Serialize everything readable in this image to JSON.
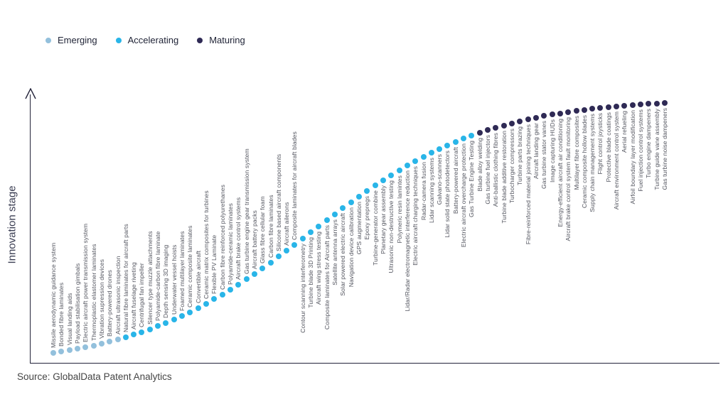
{
  "legend": [
    {
      "label": "Emerging",
      "color": "#93c0dc"
    },
    {
      "label": "Accelerating",
      "color": "#29b5e8"
    },
    {
      "label": "Maturing",
      "color": "#2f2a55"
    }
  ],
  "y_axis_label": "Innovation stage",
  "source": "Source: GlobalData Patent Analytics",
  "chart_data": {
    "type": "scatter",
    "title": "",
    "xlabel": "",
    "ylabel": "Innovation stage",
    "grid": false,
    "legend_position": "top-left",
    "curve_shape": "s-curve (logistic), ordered left-to-right by innovation maturity",
    "stage_colors": {
      "Emerging": "#93c0dc",
      "Accelerating": "#29b5e8",
      "Maturing": "#2f2a55"
    },
    "items": [
      {
        "label": "Missile aerodynamic guidance system",
        "stage": "Emerging"
      },
      {
        "label": "Bonded fibre laminates",
        "stage": "Emerging"
      },
      {
        "label": "Visual landing aids",
        "stage": "Emerging"
      },
      {
        "label": "Payload stabilisation gimbals",
        "stage": "Emerging"
      },
      {
        "label": "Electric aircraft power transmission system",
        "stage": "Emerging"
      },
      {
        "label": "Thermoplastic elastomer laminates",
        "stage": "Emerging"
      },
      {
        "label": "Vibration supression devices",
        "stage": "Emerging"
      },
      {
        "label": "Battery-powered drones",
        "stage": "Emerging"
      },
      {
        "label": "Aircraft ultrasonic inspection",
        "stage": "Emerging"
      },
      {
        "label": "Natural fibre laminates for aircraft parts",
        "stage": "Accelerating"
      },
      {
        "label": "Aircraft fuselage riveting",
        "stage": "Accelerating"
      },
      {
        "label": "Centrifugal fan impeller",
        "stage": "Accelerating"
      },
      {
        "label": "Silencer type muzzle attachments",
        "stage": "Accelerating"
      },
      {
        "label": "Polyamide-carbon fibre laminate",
        "stage": "Accelerating"
      },
      {
        "label": "Depth sensing 3D imaging",
        "stage": "Accelerating"
      },
      {
        "label": "Underwater vessel hoists",
        "stage": "Accelerating"
      },
      {
        "label": "Foamed multilayer laminates",
        "stage": "Accelerating"
      },
      {
        "label": "Ceramic composite laminates",
        "stage": "Accelerating"
      },
      {
        "label": "Convertible aircraft",
        "stage": "Accelerating"
      },
      {
        "label": "Ceramic matrix composites for turbines",
        "stage": "Accelerating"
      },
      {
        "label": "Flexible PV Laminate",
        "stage": "Accelerating"
      },
      {
        "label": "Carbon fibre reinforced polyurethanes",
        "stage": "Accelerating"
      },
      {
        "label": "Polyamide-ceramic laminates",
        "stage": "Accelerating"
      },
      {
        "label": "Aircraft brake control systems",
        "stage": "Accelerating"
      },
      {
        "label": "Gas turbine engine gear transmission system",
        "stage": "Accelerating"
      },
      {
        "label": "Aircraft battery packs",
        "stage": "Accelerating"
      },
      {
        "label": "Glass fibre cellular foam",
        "stage": "Accelerating"
      },
      {
        "label": "Carbon fibre laminates",
        "stage": "Accelerating"
      },
      {
        "label": "Silicone based aircraft components",
        "stage": "Accelerating"
      },
      {
        "label": "Aircraft ailerons",
        "stage": "Accelerating"
      },
      {
        "label": "Composite laminates for aircraft blades",
        "stage": "Accelerating"
      },
      {
        "label": "Contour scanning interferometry",
        "stage": "Accelerating"
      },
      {
        "label": "Turbine blade 3D Printing",
        "stage": "Accelerating"
      },
      {
        "label": "Aircraft wing stress testing",
        "stage": "Accelerating"
      },
      {
        "label": "Composite laminates for Aircraft parts",
        "stage": "Accelerating"
      },
      {
        "label": "Satellite antenna arrays",
        "stage": "Accelerating"
      },
      {
        "label": "Solar powered electric aircraft",
        "stage": "Accelerating"
      },
      {
        "label": "Navigation device calibration",
        "stage": "Accelerating"
      },
      {
        "label": "GPS augmentation",
        "stage": "Accelerating"
      },
      {
        "label": "Epoxy prepregs",
        "stage": "Accelerating"
      },
      {
        "label": "Turbine-generator combine",
        "stage": "Accelerating"
      },
      {
        "label": "Planetary gear assembly",
        "stage": "Accelerating"
      },
      {
        "label": "Ultrasonic non-destructive testing",
        "stage": "Accelerating"
      },
      {
        "label": "Polymeric resin lamintes",
        "stage": "Accelerating"
      },
      {
        "label": "Lidar/Radar electromagnetic interference reduction",
        "stage": "Accelerating"
      },
      {
        "label": "Electric aircraft charging techniques",
        "stage": "Accelerating"
      },
      {
        "label": "Radar-camera fusion",
        "stage": "Accelerating"
      },
      {
        "label": "Lidar scanning systems",
        "stage": "Accelerating"
      },
      {
        "label": "Galvano-scanners",
        "stage": "Accelerating"
      },
      {
        "label": "Lidar solid state photodetectors",
        "stage": "Accelerating"
      },
      {
        "label": "Battery-powered aircraft",
        "stage": "Accelerating"
      },
      {
        "label": "Electric aircraft overcharge protection",
        "stage": "Accelerating"
      },
      {
        "label": "Gas Turbine Engine Testing",
        "stage": "Accelerating"
      },
      {
        "label": "Blade alloy welding",
        "stage": "Maturing"
      },
      {
        "label": "Gas turbine fuel injectors",
        "stage": "Maturing"
      },
      {
        "label": "Anti-ballistic clothing fibres",
        "stage": "Maturing"
      },
      {
        "label": "Turbine blade additive restoration",
        "stage": "Maturing"
      },
      {
        "label": "Turbocharger compressors",
        "stage": "Maturing"
      },
      {
        "label": "Turbine parts brazing",
        "stage": "Maturing"
      },
      {
        "label": "Fibre-reinforced material joining techniques",
        "stage": "Maturing"
      },
      {
        "label": "Aircraft landing gear",
        "stage": "Maturing"
      },
      {
        "label": "Gas turbine stator vanes",
        "stage": "Maturing"
      },
      {
        "label": "Image capturing HUDs",
        "stage": "Maturing"
      },
      {
        "label": "Energy-efficient aircraft air conditioning",
        "stage": "Maturing"
      },
      {
        "label": "Aircraft brake control system fault monitoring",
        "stage": "Maturing"
      },
      {
        "label": "Multilayer fibre composites",
        "stage": "Maturing"
      },
      {
        "label": "Ceramic composite hollow blades",
        "stage": "Maturing"
      },
      {
        "label": "Supply chain management systems",
        "stage": "Maturing"
      },
      {
        "label": "Flight control joysticks",
        "stage": "Maturing"
      },
      {
        "label": "Protective blade coatings",
        "stage": "Maturing"
      },
      {
        "label": "Aircraft environment control system",
        "stage": "Maturing"
      },
      {
        "label": "Aerial refueling",
        "stage": "Maturing"
      },
      {
        "label": "Airfoil boundary layer modification",
        "stage": "Maturing"
      },
      {
        "label": "Fuel injection control systems",
        "stage": "Maturing"
      },
      {
        "label": "Turbo engine dampeners",
        "stage": "Maturing"
      },
      {
        "label": "Turbine guide vane assembly",
        "stage": "Maturing"
      },
      {
        "label": "Gas turbine noise dampeners",
        "stage": "Maturing"
      }
    ]
  }
}
